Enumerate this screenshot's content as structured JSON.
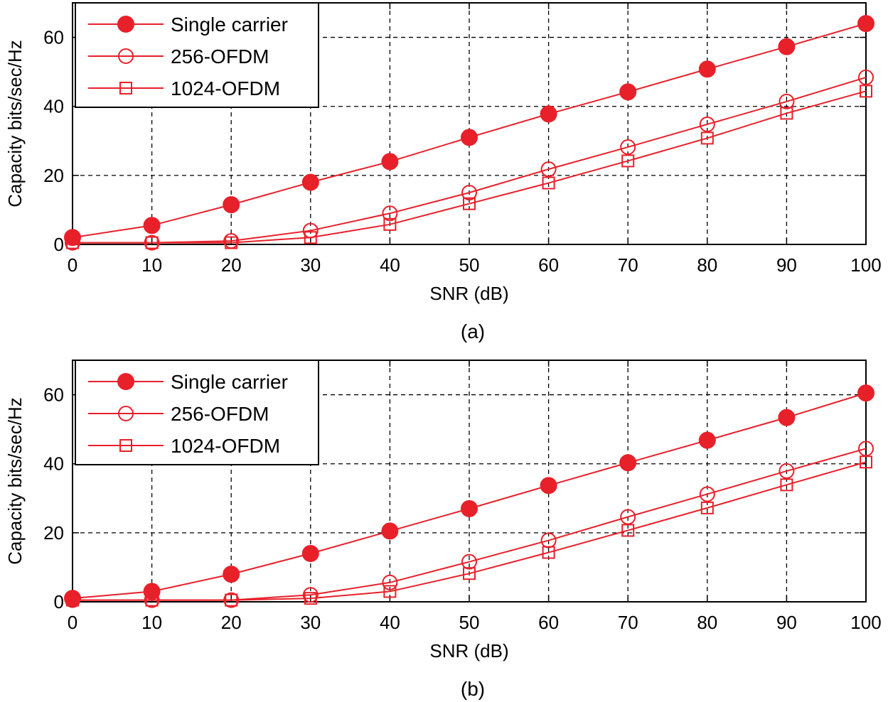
{
  "colors": {
    "series": "#e8202a",
    "grid": "#000000",
    "axis": "#000000"
  },
  "chart_data": [
    {
      "type": "line",
      "caption": "(a)",
      "xlabel": "SNR (dB)",
      "ylabel": "Capacity bits/sec/Hz",
      "xlim": [
        0,
        100
      ],
      "ylim": [
        0,
        70
      ],
      "xticks": [
        0,
        10,
        20,
        30,
        40,
        50,
        60,
        70,
        80,
        90,
        100
      ],
      "yticks": [
        0,
        20,
        40,
        60
      ],
      "grid": true,
      "legend_position": "top-left",
      "x": [
        0,
        10,
        20,
        30,
        40,
        50,
        60,
        70,
        80,
        90,
        100
      ],
      "series": [
        {
          "name": "Single carrier",
          "marker": "filled-circle",
          "values": [
            2.0,
            5.5,
            11.5,
            18.0,
            24.0,
            31.0,
            37.8,
            44.2,
            50.8,
            57.3,
            64.0
          ]
        },
        {
          "name": "256-OFDM",
          "marker": "open-circle",
          "values": [
            0.5,
            0.5,
            1.0,
            4.0,
            9.0,
            15.0,
            21.8,
            28.2,
            34.8,
            41.4,
            48.4
          ]
        },
        {
          "name": "1024-OFDM",
          "marker": "open-square",
          "values": [
            0.5,
            0.5,
            0.5,
            2.0,
            5.8,
            11.8,
            17.8,
            24.2,
            30.8,
            38.0,
            44.4
          ]
        }
      ]
    },
    {
      "type": "line",
      "caption": "(b)",
      "xlabel": "SNR (dB)",
      "ylabel": "Capacity bits/sec/Hz",
      "xlim": [
        0,
        100
      ],
      "ylim": [
        0,
        70
      ],
      "xticks": [
        0,
        10,
        20,
        30,
        40,
        50,
        60,
        70,
        80,
        90,
        100
      ],
      "yticks": [
        0,
        20,
        40,
        60
      ],
      "grid": true,
      "legend_position": "top-left",
      "x": [
        0,
        10,
        20,
        30,
        40,
        50,
        60,
        70,
        80,
        90,
        100
      ],
      "series": [
        {
          "name": "Single carrier",
          "marker": "filled-circle",
          "values": [
            1.0,
            3.0,
            8.0,
            14.0,
            20.5,
            27.0,
            33.7,
            40.3,
            46.8,
            53.4,
            60.5
          ]
        },
        {
          "name": "256-OFDM",
          "marker": "open-circle",
          "values": [
            0.5,
            0.5,
            0.5,
            2.0,
            5.6,
            11.6,
            17.8,
            24.6,
            31.2,
            37.9,
            44.4
          ]
        },
        {
          "name": "1024-OFDM",
          "marker": "open-square",
          "values": [
            0.5,
            0.5,
            0.5,
            1.0,
            3.0,
            8.2,
            14.3,
            20.7,
            27.2,
            33.9,
            40.5
          ]
        }
      ]
    }
  ]
}
